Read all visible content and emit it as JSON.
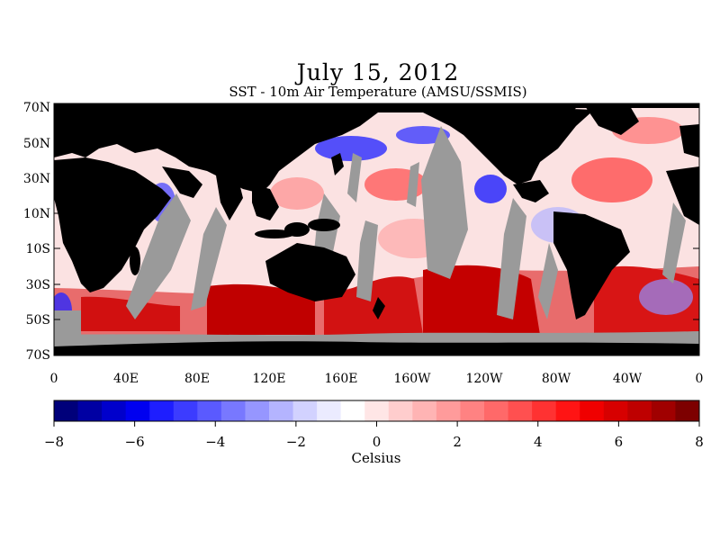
{
  "title": "July 15, 2012",
  "subtitle": "SST - 10m Air Temperature (AMSU/SSMIS)",
  "lat_labels": [
    "70N",
    "50N",
    "30N",
    "10N",
    "10S",
    "30S",
    "50S",
    "70S"
  ],
  "lon_labels": [
    "0",
    "40E",
    "80E",
    "120E",
    "160E",
    "160W",
    "120W",
    "80W",
    "40W",
    "0"
  ],
  "colorbar": {
    "unit_label": "Celsius",
    "tick_labels": [
      "-8",
      "-6",
      "-4",
      "-2",
      "0",
      "2",
      "4",
      "6",
      "8"
    ],
    "range": [
      -8,
      8
    ],
    "colors": [
      "#00007a",
      "#0000a3",
      "#0000cc",
      "#0000f0",
      "#1e1eff",
      "#3c3cff",
      "#5a5aff",
      "#7878ff",
      "#9696ff",
      "#b4b4ff",
      "#d2d2ff",
      "#ebebff",
      "#ffffff",
      "#ffe6e6",
      "#ffcdcd",
      "#ffb4b4",
      "#ff9b9b",
      "#ff8282",
      "#ff6969",
      "#ff5050",
      "#ff3232",
      "#ff1414",
      "#f00000",
      "#d70000",
      "#be0000",
      "#a00000",
      "#7d0000"
    ]
  },
  "colors": {
    "land": "#000000",
    "missing": "#9a9a9a",
    "ice": "#9a9a9a"
  }
}
